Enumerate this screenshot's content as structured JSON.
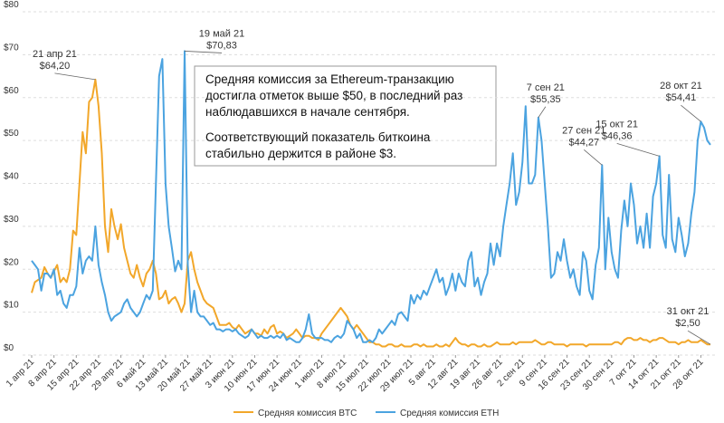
{
  "chart_data": {
    "type": "line",
    "categories": [
      "1 апр 21",
      null,
      null,
      null,
      null,
      null,
      null,
      "8 апр 21",
      null,
      null,
      null,
      null,
      null,
      null,
      "15 апр 21",
      null,
      null,
      null,
      null,
      null,
      null,
      "22 апр 21",
      null,
      null,
      null,
      null,
      null,
      null,
      "29 апр 21",
      null,
      null,
      null,
      null,
      null,
      null,
      "6 май 21",
      null,
      null,
      null,
      null,
      null,
      null,
      "13 май 21",
      null,
      null,
      null,
      null,
      null,
      null,
      "20 май 21",
      null,
      null,
      null,
      null,
      null,
      null,
      "27 май 21",
      null,
      null,
      null,
      null,
      null,
      null,
      "3 июн 21",
      null,
      null,
      null,
      null,
      null,
      null,
      "10 июн 21",
      null,
      null,
      null,
      null,
      null,
      null,
      "17 июн 21",
      null,
      null,
      null,
      null,
      null,
      null,
      "24 июн 21",
      null,
      null,
      null,
      null,
      null,
      null,
      "1 июл 21",
      null,
      null,
      null,
      null,
      null,
      null,
      "8 июл 21",
      null,
      null,
      null,
      null,
      null,
      null,
      "15 июл 21",
      null,
      null,
      null,
      null,
      null,
      null,
      "22 июл 21",
      null,
      null,
      null,
      null,
      null,
      null,
      "29 июл 21",
      null,
      null,
      null,
      null,
      null,
      null,
      "5 авг 21",
      null,
      null,
      null,
      null,
      null,
      null,
      "12 авг 21",
      null,
      null,
      null,
      null,
      null,
      null,
      "19 авг 21",
      null,
      null,
      null,
      null,
      null,
      null,
      "26 авг 21",
      null,
      null,
      null,
      null,
      null,
      null,
      "2 сен 21",
      null,
      null,
      null,
      null,
      null,
      null,
      "9 сен 21",
      null,
      null,
      null,
      null,
      null,
      null,
      "16 сен 21",
      null,
      null,
      null,
      null,
      null,
      null,
      "23 сен 21",
      null,
      null,
      null,
      null,
      null,
      null,
      "30 сен 21",
      null,
      null,
      null,
      null,
      null,
      null,
      "7 окт 21",
      null,
      null,
      null,
      null,
      null,
      null,
      "14 окт 21",
      null,
      null,
      null,
      null,
      null,
      null,
      "21 окт 21",
      null,
      null,
      null,
      null,
      null,
      null,
      "28 окт 21",
      null,
      null,
      null
    ],
    "series": [
      {
        "name": "Средняя комиссия BTC",
        "color": "#f2a72a",
        "values": [
          14.5,
          17,
          17.5,
          18,
          20.5,
          19,
          18,
          19.5,
          21,
          17,
          18,
          17,
          20,
          29,
          28,
          40,
          52,
          47,
          59,
          60,
          64.2,
          58,
          47,
          30,
          24,
          34,
          30,
          27,
          30.5,
          25,
          22,
          19,
          18,
          21,
          18,
          16,
          19,
          20,
          22,
          19,
          13,
          13.5,
          15,
          12,
          13,
          13.5,
          12,
          10,
          12,
          22,
          24,
          20,
          17,
          15,
          13,
          12,
          11.5,
          11,
          9,
          7,
          7,
          7,
          7.5,
          6.5,
          6,
          7,
          6,
          5,
          5.5,
          6,
          5,
          5,
          4.5,
          6,
          5,
          6.5,
          7,
          5,
          5.5,
          5,
          4,
          4.5,
          5,
          6,
          5,
          4,
          4.5,
          4.5,
          4,
          4,
          3.5,
          5,
          6,
          7,
          8,
          9,
          10,
          11,
          10,
          9,
          7,
          6,
          7,
          6,
          5,
          4,
          3,
          3,
          2.5,
          2.5,
          2,
          2,
          2.5,
          2.5,
          2,
          2,
          2.5,
          2,
          2,
          2,
          2.5,
          2.5,
          2,
          2.5,
          2,
          2,
          2,
          2.5,
          2,
          2,
          2.5,
          2,
          3,
          4,
          3,
          2.5,
          2.5,
          2,
          2.5,
          2.5,
          2,
          2,
          2.5,
          2,
          2,
          2.5,
          3,
          2.5,
          2.5,
          2.5,
          2.5,
          3,
          2.5,
          3,
          3,
          3,
          3,
          3,
          3.5,
          3,
          2.5,
          2.5,
          3,
          3,
          2.5,
          2.5,
          2.5,
          2.5,
          2,
          2.5,
          2.5,
          2.5,
          2.5,
          2.5,
          2,
          2.5,
          2.5,
          2.5,
          2.5,
          2.5,
          2.5,
          2.5,
          2.5,
          3,
          3,
          2.5,
          3.5,
          4,
          4,
          3.5,
          3.5,
          4,
          3.5,
          3.5,
          3,
          3.5,
          3.5,
          4,
          4,
          3.5,
          3,
          3,
          3,
          2.5,
          3,
          3,
          3.5,
          3,
          3,
          3,
          3.5,
          3,
          2.5,
          2.5
        ],
        "value_labels": {
          "20": "$64,20",
          "213": "$2,50"
        },
        "label_dates": {
          "20": "21 апр 21",
          "213": "31 окт 21"
        }
      },
      {
        "name": "Средняя комиссия ETH",
        "color": "#4ba3e0",
        "values": [
          22,
          21,
          20,
          15,
          19,
          19,
          18,
          20,
          14,
          15,
          12,
          11,
          14,
          14,
          16,
          25,
          19,
          22,
          23,
          22,
          30,
          21,
          17,
          14,
          10,
          8,
          9,
          9.5,
          10,
          12,
          13,
          11,
          10,
          9,
          10,
          12,
          14,
          13,
          15,
          40,
          65,
          69,
          40,
          30,
          25,
          19.5,
          22,
          20,
          70.83,
          21,
          10,
          15,
          10,
          9,
          9,
          8,
          7,
          7.5,
          6,
          6,
          5.5,
          6,
          6,
          5.5,
          6,
          5,
          4.5,
          4,
          4.5,
          6,
          5,
          4,
          4.5,
          4,
          4,
          4.5,
          4,
          4.5,
          4,
          5,
          3.5,
          4,
          3.5,
          3,
          3,
          4,
          6,
          9.5,
          5,
          4,
          4,
          4,
          3.5,
          3.5,
          3,
          4,
          4.5,
          4,
          5,
          8,
          7,
          6,
          4,
          5,
          3,
          3,
          3.5,
          3,
          4,
          6,
          5,
          6,
          7,
          8,
          7,
          9.5,
          10,
          9,
          8,
          14,
          12,
          14,
          13,
          15,
          14,
          16,
          18,
          20,
          17,
          18,
          14,
          16,
          19,
          15,
          19,
          17,
          16,
          22,
          24,
          16,
          18,
          14,
          17,
          19,
          26,
          21,
          26,
          23,
          30,
          35,
          40,
          47,
          35,
          38,
          45,
          58,
          40,
          40,
          42,
          55.35,
          50,
          40,
          30,
          18,
          19,
          24,
          22,
          27,
          22,
          18,
          20,
          16,
          14,
          24,
          22,
          15,
          13,
          21,
          25,
          44.27,
          20,
          32,
          24,
          20,
          18,
          29,
          36,
          30,
          40,
          35,
          26,
          30,
          25,
          33,
          25,
          37,
          40,
          46.36,
          28,
          25,
          42,
          27,
          24,
          32,
          28,
          23,
          26,
          33,
          38,
          50,
          54.41,
          53,
          50,
          49
        ],
        "value_labels": {
          "48": "$70,83",
          "159": "$55,35",
          "179": "$44,27",
          "197": "$46,36",
          "210": "$54,41"
        },
        "label_dates": {
          "48": "19 май 21",
          "159": "7 сен 21",
          "179": "27 сен 21",
          "197": "15 окт 21",
          "210": "28 окт 21"
        }
      }
    ],
    "ylim": [
      0,
      80
    ],
    "yticks": [
      {
        "value": 0,
        "label": "$0"
      },
      {
        "value": 10,
        "label": "$10"
      },
      {
        "value": 20,
        "label": "$20"
      },
      {
        "value": 30,
        "label": "$30"
      },
      {
        "value": 40,
        "label": "$40"
      },
      {
        "value": 50,
        "label": "$50"
      },
      {
        "value": 60,
        "label": "$60"
      },
      {
        "value": 70,
        "label": "$70"
      },
      {
        "value": 80,
        "label": "$80"
      }
    ],
    "grid": true,
    "note": [
      [
        "Средняя комиссия за Ethereum-транзакцию",
        "достигла отметок выше $50, в последний раз",
        "наблюдавшихся в начале сентября."
      ],
      [
        "Соответствующий показатель биткоина",
        "стабильно держится в районе $3."
      ]
    ]
  }
}
